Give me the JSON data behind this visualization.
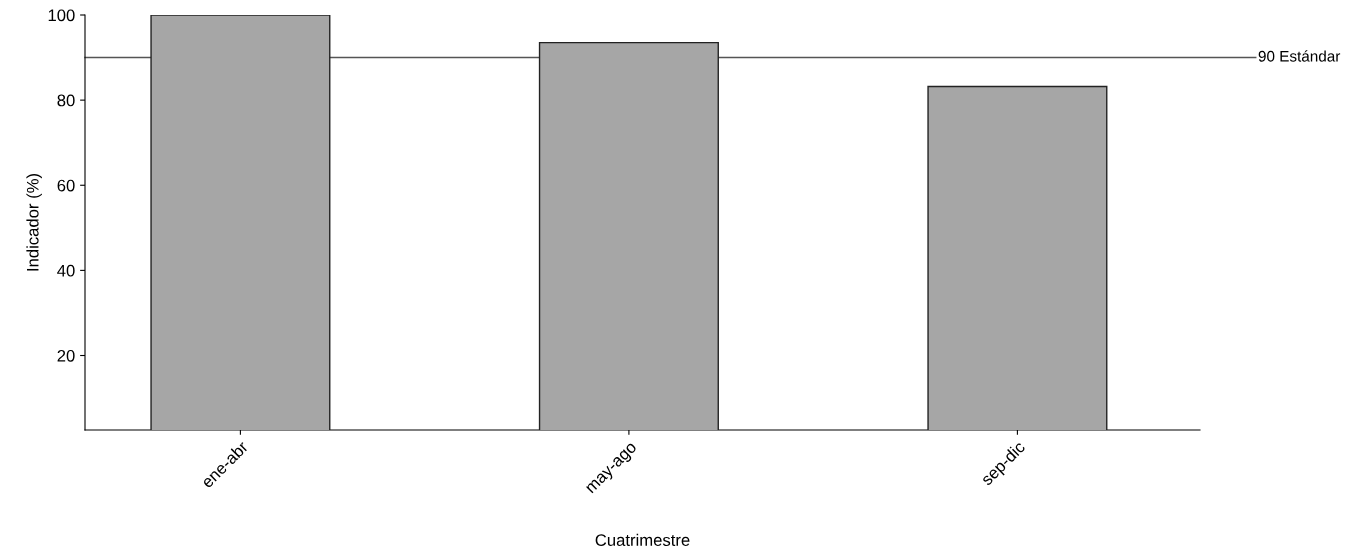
{
  "chart_data": {
    "type": "bar",
    "categories": [
      "ene-abr",
      "may-ago",
      "sep-dic"
    ],
    "values": [
      100,
      93.5,
      83.2
    ],
    "color": "#a6a6a6",
    "xlabel": "Cuatrimestre",
    "ylabel": "Indicador (%)",
    "ylim": [
      2.5,
      100
    ],
    "yticks": [
      20,
      40,
      60,
      80,
      100
    ],
    "grid": false,
    "ref_lines": [
      {
        "axis": "y",
        "value": 90,
        "label": "90 Estándar",
        "color": "#555555"
      }
    ]
  }
}
